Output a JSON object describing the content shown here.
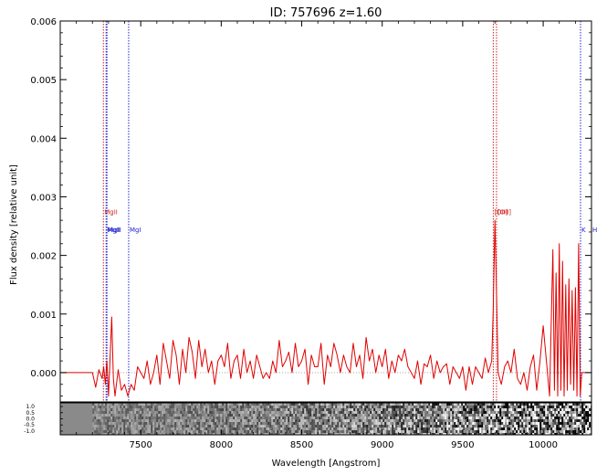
{
  "chart_data": {
    "type": "line",
    "title": "ID: 757696  z=1.60",
    "xlabel": "Wavelength [Angstrom]",
    "ylabel": "Flux density [relative unit]",
    "xlim": [
      7000,
      10300
    ],
    "ylim": [
      -0.0005,
      0.006
    ],
    "x_ticks": [
      {
        "value": 7500,
        "label": "7500"
      },
      {
        "value": 8000,
        "label": "8000"
      },
      {
        "value": 8500,
        "label": "8500"
      },
      {
        "value": 9000,
        "label": "9000"
      },
      {
        "value": 9500,
        "label": "9500"
      },
      {
        "value": 10000,
        "label": "10000"
      }
    ],
    "y_ticks": [
      {
        "value": 0.0,
        "label": "0.000"
      },
      {
        "value": 0.001,
        "label": "0.001"
      },
      {
        "value": 0.002,
        "label": "0.002"
      },
      {
        "value": 0.003,
        "label": "0.003"
      },
      {
        "value": 0.004,
        "label": "0.004"
      },
      {
        "value": 0.005,
        "label": "0.005"
      },
      {
        "value": 0.006,
        "label": "0.006"
      }
    ],
    "zero_line": 0.0,
    "series": [
      {
        "color": "#e00000",
        "x": [
          7000,
          7200,
          7220,
          7240,
          7260,
          7270,
          7280,
          7290,
          7300,
          7310,
          7320,
          7330,
          7340,
          7360,
          7380,
          7400,
          7420,
          7440,
          7460,
          7480,
          7500,
          7520,
          7540,
          7560,
          7580,
          7600,
          7620,
          7640,
          7660,
          7680,
          7700,
          7720,
          7740,
          7760,
          7780,
          7800,
          7820,
          7840,
          7860,
          7880,
          7900,
          7920,
          7940,
          7960,
          7980,
          8000,
          8020,
          8040,
          8060,
          8080,
          8100,
          8120,
          8140,
          8160,
          8180,
          8200,
          8220,
          8240,
          8260,
          8280,
          8300,
          8320,
          8340,
          8360,
          8380,
          8400,
          8420,
          8440,
          8460,
          8480,
          8500,
          8520,
          8540,
          8560,
          8580,
          8600,
          8620,
          8640,
          8660,
          8680,
          8700,
          8720,
          8740,
          8760,
          8780,
          8800,
          8820,
          8840,
          8860,
          8880,
          8900,
          8920,
          8940,
          8960,
          8980,
          9000,
          9020,
          9040,
          9060,
          9080,
          9100,
          9120,
          9140,
          9160,
          9180,
          9200,
          9220,
          9240,
          9260,
          9280,
          9300,
          9320,
          9340,
          9360,
          9380,
          9400,
          9420,
          9440,
          9460,
          9480,
          9500,
          9520,
          9540,
          9560,
          9580,
          9600,
          9620,
          9640,
          9660,
          9680,
          9690,
          9700,
          9710,
          9720,
          9740,
          9760,
          9780,
          9800,
          9820,
          9840,
          9860,
          9880,
          9900,
          9920,
          9940,
          9960,
          9980,
          10000,
          10020,
          10040,
          10060,
          10070,
          10080,
          10090,
          10100,
          10110,
          10120,
          10130,
          10140,
          10150,
          10160,
          10170,
          10180,
          10190,
          10200,
          10210,
          10220,
          10230,
          10240,
          10260,
          10300
        ],
        "y": [
          0.0,
          0.0,
          -0.00025,
          5e-05,
          -0.0001,
          0.0001,
          -0.0002,
          0.0002,
          -0.0004,
          0.0003,
          0.00095,
          -0.0001,
          -0.0004,
          5e-05,
          -0.0003,
          -0.0002,
          -0.0004,
          -0.0002,
          -0.0003,
          0.0001,
          0.0,
          -0.0001,
          0.0002,
          -0.0002,
          0.0,
          0.0003,
          -0.0002,
          0.0005,
          0.0002,
          -0.0001,
          0.00055,
          0.0003,
          -0.0002,
          0.0004,
          0.0,
          0.0006,
          0.00035,
          -0.0001,
          0.00055,
          0.0001,
          0.0004,
          0.0,
          0.0002,
          -0.0002,
          0.0002,
          0.0003,
          0.0001,
          0.0005,
          -0.0001,
          0.0002,
          0.0003,
          -0.0001,
          0.0004,
          0.0,
          0.0002,
          -0.0001,
          0.0003,
          0.0001,
          -0.0001,
          0.0,
          -0.0001,
          0.0002,
          0.0,
          0.00055,
          0.0001,
          0.0002,
          0.00035,
          0.0,
          0.0005,
          0.0001,
          0.0002,
          0.0004,
          -0.0002,
          0.0003,
          0.0001,
          0.0001,
          0.0005,
          -0.0002,
          0.0003,
          0.0001,
          0.0005,
          0.0003,
          0.0,
          0.0003,
          0.0001,
          0.0,
          0.0005,
          0.0001,
          0.0003,
          -0.0001,
          0.0006,
          0.0002,
          0.0004,
          0.0,
          0.0003,
          0.0001,
          0.0004,
          -0.0001,
          0.0002,
          0.0,
          0.0003,
          0.0002,
          0.0004,
          0.0001,
          0.0,
          -0.0001,
          0.0002,
          -0.0002,
          0.00015,
          0.0001,
          0.0003,
          -0.0001,
          0.0002,
          0.0,
          0.0001,
          0.00015,
          -0.0002,
          0.0001,
          0.0,
          -0.0001,
          0.0001,
          -0.0003,
          0.0001,
          -0.0002,
          0.0001,
          0.0,
          -0.0001,
          0.00025,
          0.0,
          0.0002,
          0.0011,
          0.0026,
          0.0014,
          0.0,
          -0.0002,
          0.0001,
          0.0002,
          0.0,
          0.0004,
          -0.0001,
          -0.0002,
          0.0,
          -0.0003,
          0.0001,
          0.0003,
          -0.0003,
          0.0002,
          0.0008,
          0.0002,
          -0.0004,
          0.0021,
          -0.0003,
          0.0017,
          -0.0004,
          0.0022,
          -0.0003,
          0.0019,
          -0.0004,
          0.0015,
          -0.0003,
          0.0016,
          -0.0002,
          0.0014,
          -0.0003,
          0.00145,
          -0.0004,
          0.0022,
          -0.0004,
          0.0,
          0.0,
          0.0
        ]
      }
    ],
    "line_markers": [
      {
        "label": "MgII",
        "x": 7268,
        "label_y": 0.0027,
        "color": "#d02020"
      },
      {
        "label": "MgII",
        "x": 7285,
        "label_y": 0.0024,
        "color": "#2020d0"
      },
      {
        "label": "MgII",
        "x": 7290,
        "label_y": 0.0024,
        "color": "#2020d0"
      },
      {
        "label": "MgI",
        "x": 7425,
        "label_y": 0.0024,
        "color": "#2020d0"
      },
      {
        "label": "[OII]",
        "x": 9690,
        "label_y": 0.0027,
        "color": "#d02020"
      },
      {
        "label": "[OII]",
        "x": 9710,
        "label_y": 0.0027,
        "color": "#d02020"
      },
      {
        "label": "K",
        "x": 10232,
        "label_y": 0.0024,
        "color": "#2020d0"
      },
      {
        "label": "H",
        "x": 10300,
        "label_y": 0.0024,
        "color": "#2020d0"
      }
    ],
    "strip_panel": {
      "y_ticks": [
        {
          "value": 1.0,
          "label": "1.0"
        },
        {
          "value": 0.5,
          "label": "0.5"
        },
        {
          "value": 0.0,
          "label": "0.0"
        },
        {
          "value": -0.5,
          "label": "-0.5"
        },
        {
          "value": -1.0,
          "label": "-1.0"
        }
      ],
      "data_start": 7200
    }
  }
}
